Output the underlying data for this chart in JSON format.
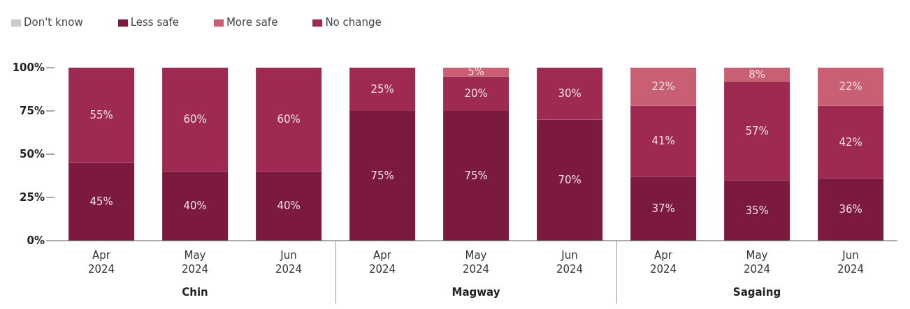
{
  "chart_data": {
    "type": "bar",
    "stacked": true,
    "categories": [
      "Apr 2024",
      "May 2024",
      "Jun 2024",
      "Apr 2024",
      "May 2024",
      "Jun 2024",
      "Apr 2024",
      "May 2024",
      "Jun 2024"
    ],
    "series": [
      {
        "name": "Less safe",
        "color": "#7b1a3e",
        "values": [
          45,
          40,
          40,
          75,
          75,
          70,
          37,
          35,
          36
        ],
        "value_labels": [
          "45%",
          "40%",
          "40%",
          "75%",
          "75%",
          "70%",
          "37%",
          "35%",
          "36%"
        ]
      },
      {
        "name": "No change",
        "color": "#9e2a52",
        "values": [
          55,
          60,
          60,
          25,
          20,
          30,
          41,
          57,
          42
        ],
        "value_labels": [
          "55%",
          "60%",
          "60%",
          "25%",
          "20%",
          "30%",
          "41%",
          "57%",
          "42%"
        ]
      },
      {
        "name": "More safe",
        "color": "#c95f72",
        "values": [
          null,
          null,
          null,
          null,
          5,
          null,
          22,
          8,
          22
        ],
        "value_labels": [
          null,
          null,
          null,
          null,
          "5%",
          null,
          "22%",
          "8%",
          "22%"
        ]
      },
      {
        "name": "Don't know",
        "color": "#c8cbd2",
        "values": [
          null,
          null,
          null,
          null,
          null,
          null,
          null,
          null,
          null
        ]
      }
    ],
    "ylim": [
      0,
      100
    ],
    "yticks": [
      {
        "value": 0,
        "label": "0%"
      },
      {
        "value": 25,
        "label": "25%"
      },
      {
        "value": 50,
        "label": "50%"
      },
      {
        "value": 75,
        "label": "75%"
      },
      {
        "value": 100,
        "label": "100%"
      }
    ],
    "annotations": [
      "Chin",
      "Magway",
      "Sagaing"
    ],
    "legend": "top left",
    "grid": false
  }
}
